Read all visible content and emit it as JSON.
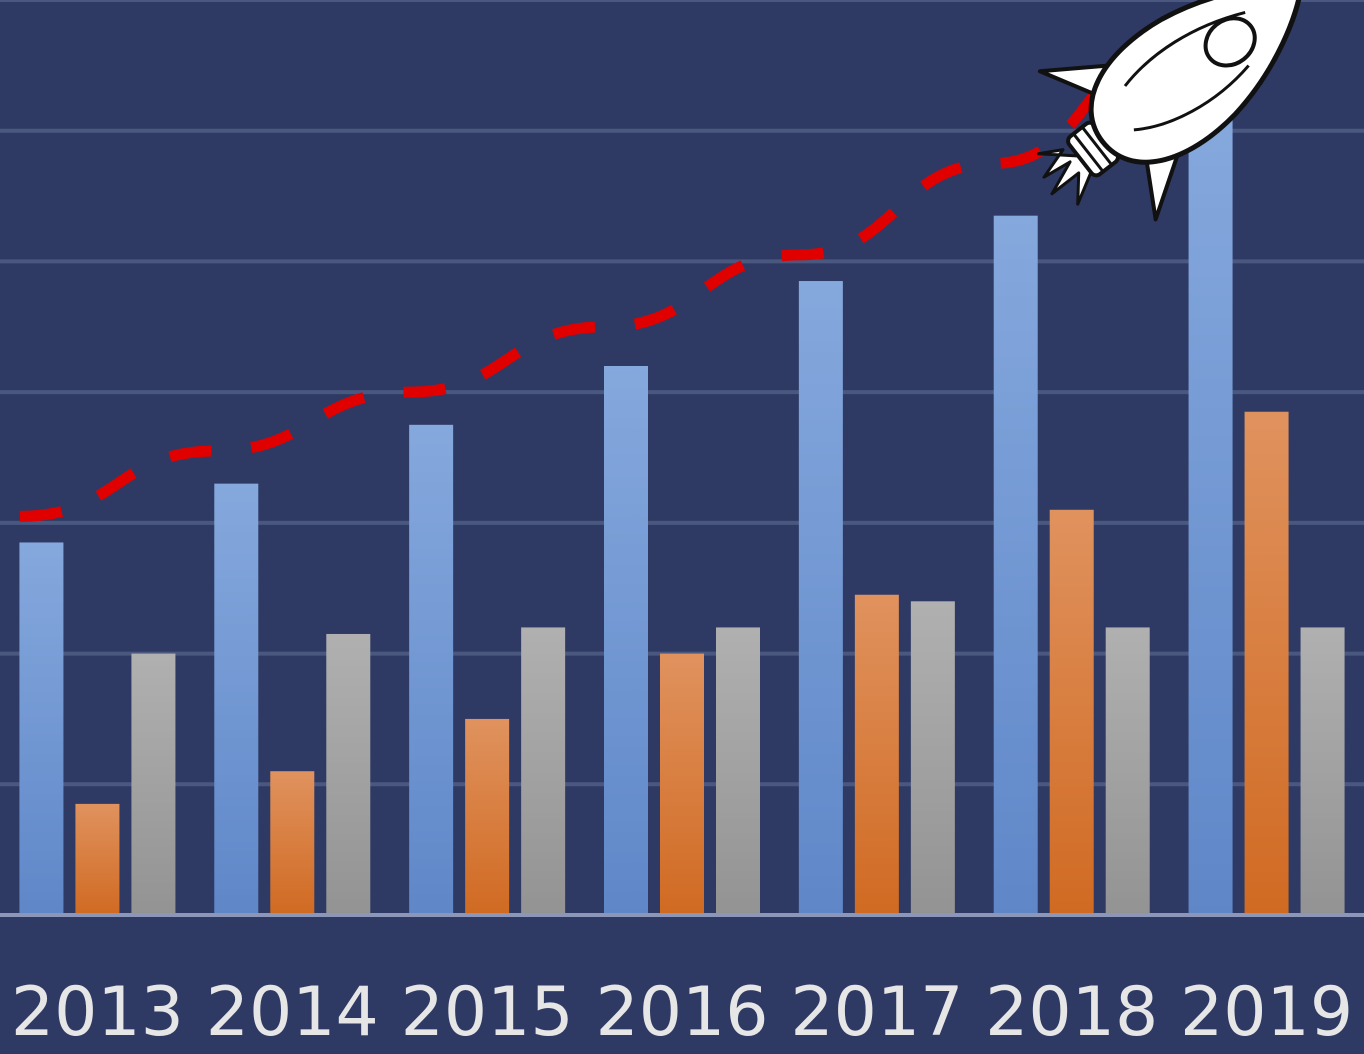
{
  "chart_data": {
    "type": "bar",
    "categories": [
      "2013",
      "2014",
      "2015",
      "2016",
      "2017",
      "2018",
      "2019"
    ],
    "series": [
      {
        "values": [
          57,
          66,
          75,
          84,
          97,
          107,
          122
        ]
      },
      {
        "values": [
          17,
          22,
          30,
          40,
          49,
          62,
          77
        ]
      },
      {
        "values": [
          40,
          43,
          44,
          44,
          48,
          44,
          44
        ]
      }
    ],
    "trend_line": {
      "style": "dashed",
      "values": [
        61,
        71,
        80,
        90,
        101,
        115,
        135
      ]
    },
    "ylim": [
      0,
      140
    ],
    "grid": true,
    "legend": "none",
    "title": "",
    "xlabel": "",
    "ylabel": "",
    "decoration": "rocket-icon",
    "colors": {
      "background": "#2e3a63",
      "grid": "#4a577f",
      "baseline": "#8b96b8",
      "series": [
        "#6f9bd9",
        "#de7a36",
        "#a5a5a5"
      ],
      "trend": "#e00000",
      "tick_labels": "#e6e6e6"
    }
  }
}
